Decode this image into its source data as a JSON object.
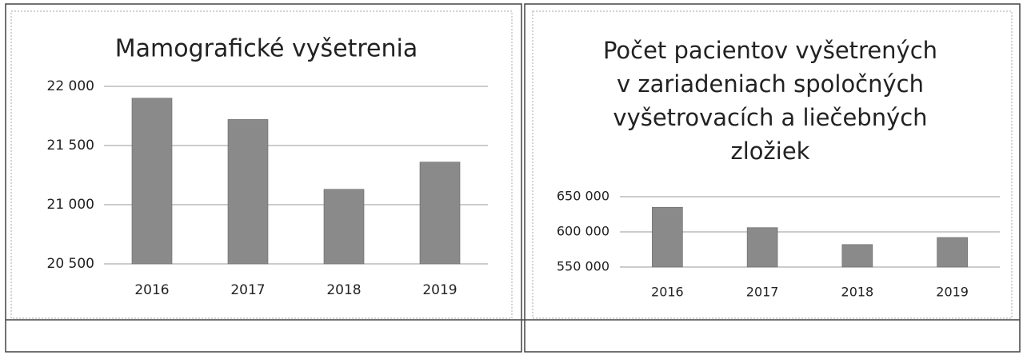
{
  "chart_data": [
    {
      "type": "bar",
      "title": [
        "Mamografické vyšetrenia"
      ],
      "categories": [
        "2016",
        "2017",
        "2018",
        "2019"
      ],
      "values": [
        21900,
        21720,
        21130,
        21360
      ],
      "color": "#8a8a8a",
      "ylim": [
        20500,
        22000
      ],
      "yticks": [
        {
          "value": 20500,
          "label": "20 500"
        },
        {
          "value": 21000,
          "label": "21 000"
        },
        {
          "value": 21500,
          "label": "21 500"
        },
        {
          "value": 22000,
          "label": "22 000"
        }
      ],
      "grid": true
    },
    {
      "type": "bar",
      "title": [
        "Počet pacientov vyšetrených",
        "v zariadeniach spoločných",
        "vyšetrovacích a liečebných",
        "zložiek"
      ],
      "categories": [
        "2016",
        "2017",
        "2018",
        "2019"
      ],
      "values": [
        635000,
        606000,
        582000,
        592000
      ],
      "color": "#8a8a8a",
      "ylim": [
        550000,
        650000
      ],
      "yticks": [
        {
          "value": 550000,
          "label": "550 000"
        },
        {
          "value": 600000,
          "label": "600 000"
        },
        {
          "value": 650000,
          "label": "650 000"
        }
      ],
      "grid": true
    }
  ]
}
